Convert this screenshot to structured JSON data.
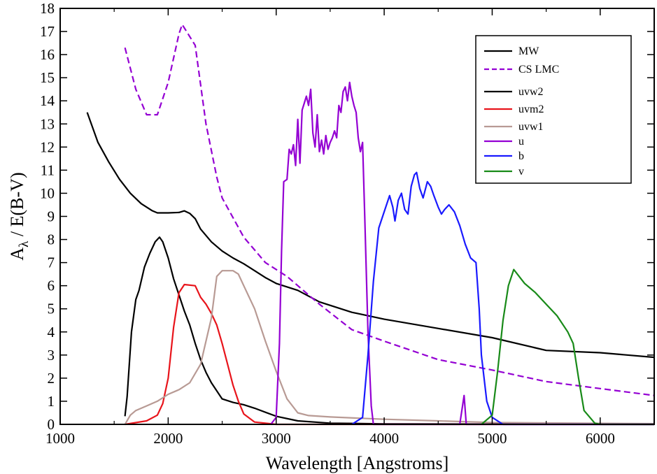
{
  "chart_data": {
    "type": "line",
    "xlabel": "Wavelength [Angstroms]",
    "ylabel": {
      "main": "A",
      "sub": "λ",
      "rest": " / E(B-V)"
    },
    "xlim": [
      1000,
      6500
    ],
    "ylim": [
      0,
      18
    ],
    "grid": false,
    "legend_position": "top-right",
    "x_ticks": [
      1000,
      2000,
      3000,
      4000,
      5000,
      6000
    ],
    "y_ticks": [
      0,
      1,
      2,
      3,
      4,
      5,
      6,
      7,
      8,
      9,
      10,
      11,
      12,
      13,
      14,
      15,
      16,
      17,
      18
    ],
    "series": [
      {
        "name": "MW",
        "color": "#000000",
        "dash": "solid",
        "points": [
          [
            1250,
            13.5
          ],
          [
            1350,
            12.2
          ],
          [
            1450,
            11.35
          ],
          [
            1550,
            10.6
          ],
          [
            1650,
            10.0
          ],
          [
            1750,
            9.55
          ],
          [
            1850,
            9.25
          ],
          [
            1900,
            9.15
          ],
          [
            2000,
            9.15
          ],
          [
            2100,
            9.17
          ],
          [
            2150,
            9.24
          ],
          [
            2200,
            9.13
          ],
          [
            2250,
            8.9
          ],
          [
            2300,
            8.45
          ],
          [
            2400,
            7.9
          ],
          [
            2500,
            7.5
          ],
          [
            2600,
            7.2
          ],
          [
            2700,
            6.95
          ],
          [
            2800,
            6.65
          ],
          [
            2900,
            6.35
          ],
          [
            3000,
            6.1
          ],
          [
            3200,
            5.8
          ],
          [
            3400,
            5.3
          ],
          [
            3700,
            4.85
          ],
          [
            4000,
            4.55
          ],
          [
            4500,
            4.15
          ],
          [
            5000,
            3.75
          ],
          [
            5500,
            3.2
          ],
          [
            6000,
            3.1
          ],
          [
            6500,
            2.9
          ]
        ]
      },
      {
        "name": "CS LMC",
        "color": "#9400d3",
        "dash": "dashed",
        "points": [
          [
            1600,
            16.3
          ],
          [
            1700,
            14.5
          ],
          [
            1800,
            13.4
          ],
          [
            1900,
            13.4
          ],
          [
            2000,
            14.8
          ],
          [
            2100,
            16.9
          ],
          [
            2130,
            17.3
          ],
          [
            2250,
            16.4
          ],
          [
            2350,
            13.0
          ],
          [
            2450,
            10.7
          ],
          [
            2500,
            9.8
          ],
          [
            2700,
            8.1
          ],
          [
            2900,
            7.0
          ],
          [
            3100,
            6.4
          ],
          [
            3400,
            5.2
          ],
          [
            3700,
            4.1
          ],
          [
            4000,
            3.6
          ],
          [
            4500,
            2.8
          ],
          [
            5000,
            2.35
          ],
          [
            5500,
            1.85
          ],
          [
            6000,
            1.55
          ],
          [
            6500,
            1.25
          ]
        ]
      },
      {
        "name": "uvw2",
        "color": "#000000",
        "dash": "solid",
        "points": [
          [
            1600,
            0.35
          ],
          [
            1620,
            1.2
          ],
          [
            1660,
            4.0
          ],
          [
            1700,
            5.4
          ],
          [
            1730,
            5.8
          ],
          [
            1780,
            6.8
          ],
          [
            1830,
            7.4
          ],
          [
            1880,
            7.9
          ],
          [
            1920,
            8.1
          ],
          [
            1950,
            7.9
          ],
          [
            2000,
            7.2
          ],
          [
            2050,
            6.3
          ],
          [
            2100,
            5.6
          ],
          [
            2150,
            4.9
          ],
          [
            2200,
            4.3
          ],
          [
            2250,
            3.5
          ],
          [
            2300,
            2.8
          ],
          [
            2350,
            2.25
          ],
          [
            2400,
            1.8
          ],
          [
            2500,
            1.1
          ],
          [
            2600,
            0.95
          ],
          [
            2700,
            0.85
          ],
          [
            2800,
            0.7
          ],
          [
            3000,
            0.35
          ],
          [
            3200,
            0.15
          ],
          [
            3500,
            0.05
          ],
          [
            4000,
            0.02
          ],
          [
            6500,
            0.0
          ]
        ]
      },
      {
        "name": "uvm2",
        "color": "#e8141b",
        "dash": "solid",
        "points": [
          [
            1600,
            0.0
          ],
          [
            1800,
            0.15
          ],
          [
            1900,
            0.4
          ],
          [
            1950,
            0.9
          ],
          [
            2000,
            2.0
          ],
          [
            2050,
            4.2
          ],
          [
            2100,
            5.7
          ],
          [
            2150,
            6.05
          ],
          [
            2250,
            6.0
          ],
          [
            2300,
            5.5
          ],
          [
            2350,
            5.2
          ],
          [
            2400,
            4.8
          ],
          [
            2450,
            4.3
          ],
          [
            2500,
            3.5
          ],
          [
            2550,
            2.6
          ],
          [
            2600,
            1.7
          ],
          [
            2650,
            1.0
          ],
          [
            2700,
            0.45
          ],
          [
            2800,
            0.1
          ],
          [
            3000,
            0.0
          ],
          [
            6500,
            0.0
          ]
        ]
      },
      {
        "name": "uvw1",
        "color": "#b89a94",
        "dash": "solid",
        "points": [
          [
            1600,
            0.0
          ],
          [
            1650,
            0.4
          ],
          [
            1700,
            0.6
          ],
          [
            1800,
            0.8
          ],
          [
            1900,
            1.0
          ],
          [
            2000,
            1.3
          ],
          [
            2100,
            1.5
          ],
          [
            2200,
            1.8
          ],
          [
            2300,
            2.6
          ],
          [
            2400,
            4.6
          ],
          [
            2450,
            6.4
          ],
          [
            2500,
            6.65
          ],
          [
            2600,
            6.65
          ],
          [
            2650,
            6.5
          ],
          [
            2700,
            6.0
          ],
          [
            2800,
            5.0
          ],
          [
            2900,
            3.6
          ],
          [
            3000,
            2.3
          ],
          [
            3100,
            1.1
          ],
          [
            3200,
            0.5
          ],
          [
            3300,
            0.38
          ],
          [
            3500,
            0.32
          ],
          [
            4000,
            0.22
          ],
          [
            4500,
            0.15
          ],
          [
            5000,
            0.08
          ],
          [
            6500,
            0.03
          ]
        ]
      },
      {
        "name": "u",
        "color": "#9400d3",
        "dash": "solid",
        "points": [
          [
            2950,
            0.0
          ],
          [
            3000,
            0.3
          ],
          [
            3030,
            3.5
          ],
          [
            3050,
            7.5
          ],
          [
            3070,
            10.5
          ],
          [
            3100,
            10.6
          ],
          [
            3120,
            11.9
          ],
          [
            3140,
            11.7
          ],
          [
            3160,
            12.1
          ],
          [
            3180,
            11.2
          ],
          [
            3200,
            13.2
          ],
          [
            3220,
            11.3
          ],
          [
            3240,
            13.6
          ],
          [
            3260,
            13.9
          ],
          [
            3280,
            14.2
          ],
          [
            3300,
            13.8
          ],
          [
            3320,
            14.5
          ],
          [
            3340,
            12.6
          ],
          [
            3360,
            12.0
          ],
          [
            3380,
            13.4
          ],
          [
            3400,
            11.8
          ],
          [
            3420,
            12.3
          ],
          [
            3440,
            11.7
          ],
          [
            3460,
            12.5
          ],
          [
            3480,
            11.9
          ],
          [
            3500,
            12.2
          ],
          [
            3520,
            12.4
          ],
          [
            3540,
            12.7
          ],
          [
            3560,
            12.4
          ],
          [
            3580,
            13.8
          ],
          [
            3600,
            13.5
          ],
          [
            3620,
            14.4
          ],
          [
            3640,
            14.6
          ],
          [
            3660,
            14.0
          ],
          [
            3680,
            14.8
          ],
          [
            3700,
            14.2
          ],
          [
            3720,
            13.8
          ],
          [
            3740,
            13.5
          ],
          [
            3760,
            12.4
          ],
          [
            3780,
            11.8
          ],
          [
            3800,
            12.2
          ],
          [
            3820,
            9.0
          ],
          [
            3850,
            4.0
          ],
          [
            3880,
            0.8
          ],
          [
            3900,
            0.0
          ],
          [
            4700,
            0.0
          ],
          [
            4740,
            1.25
          ],
          [
            4760,
            0.0
          ],
          [
            6500,
            0.0
          ]
        ]
      },
      {
        "name": "b",
        "color": "#1a1aff",
        "dash": "solid",
        "points": [
          [
            3700,
            0.0
          ],
          [
            3800,
            0.3
          ],
          [
            3850,
            3.0
          ],
          [
            3900,
            6.2
          ],
          [
            3950,
            8.5
          ],
          [
            4000,
            9.2
          ],
          [
            4050,
            9.9
          ],
          [
            4080,
            9.4
          ],
          [
            4100,
            8.8
          ],
          [
            4130,
            9.7
          ],
          [
            4160,
            10.0
          ],
          [
            4190,
            9.3
          ],
          [
            4220,
            9.1
          ],
          [
            4250,
            10.3
          ],
          [
            4280,
            10.8
          ],
          [
            4300,
            10.9
          ],
          [
            4330,
            10.2
          ],
          [
            4360,
            9.8
          ],
          [
            4400,
            10.5
          ],
          [
            4430,
            10.3
          ],
          [
            4460,
            9.9
          ],
          [
            4500,
            9.4
          ],
          [
            4530,
            9.1
          ],
          [
            4560,
            9.3
          ],
          [
            4600,
            9.5
          ],
          [
            4650,
            9.2
          ],
          [
            4700,
            8.6
          ],
          [
            4750,
            7.8
          ],
          [
            4800,
            7.2
          ],
          [
            4850,
            7.0
          ],
          [
            4880,
            5.0
          ],
          [
            4900,
            3.0
          ],
          [
            4950,
            1.0
          ],
          [
            5000,
            0.3
          ],
          [
            5100,
            0.0
          ],
          [
            6500,
            0.0
          ]
        ]
      },
      {
        "name": "v",
        "color": "#188a18",
        "dash": "solid",
        "points": [
          [
            4900,
            0.0
          ],
          [
            5000,
            0.4
          ],
          [
            5050,
            2.3
          ],
          [
            5100,
            4.5
          ],
          [
            5150,
            6.0
          ],
          [
            5200,
            6.7
          ],
          [
            5250,
            6.4
          ],
          [
            5300,
            6.1
          ],
          [
            5350,
            5.9
          ],
          [
            5400,
            5.7
          ],
          [
            5500,
            5.2
          ],
          [
            5600,
            4.7
          ],
          [
            5700,
            4.0
          ],
          [
            5750,
            3.5
          ],
          [
            5800,
            2.0
          ],
          [
            5850,
            0.6
          ],
          [
            5950,
            0.05
          ],
          [
            6000,
            0.0
          ],
          [
            6500,
            0.0
          ]
        ]
      }
    ],
    "legend": [
      "MW",
      "CS LMC",
      "uvw2",
      "uvm2",
      "uvw1",
      "u",
      "b",
      "v"
    ]
  }
}
